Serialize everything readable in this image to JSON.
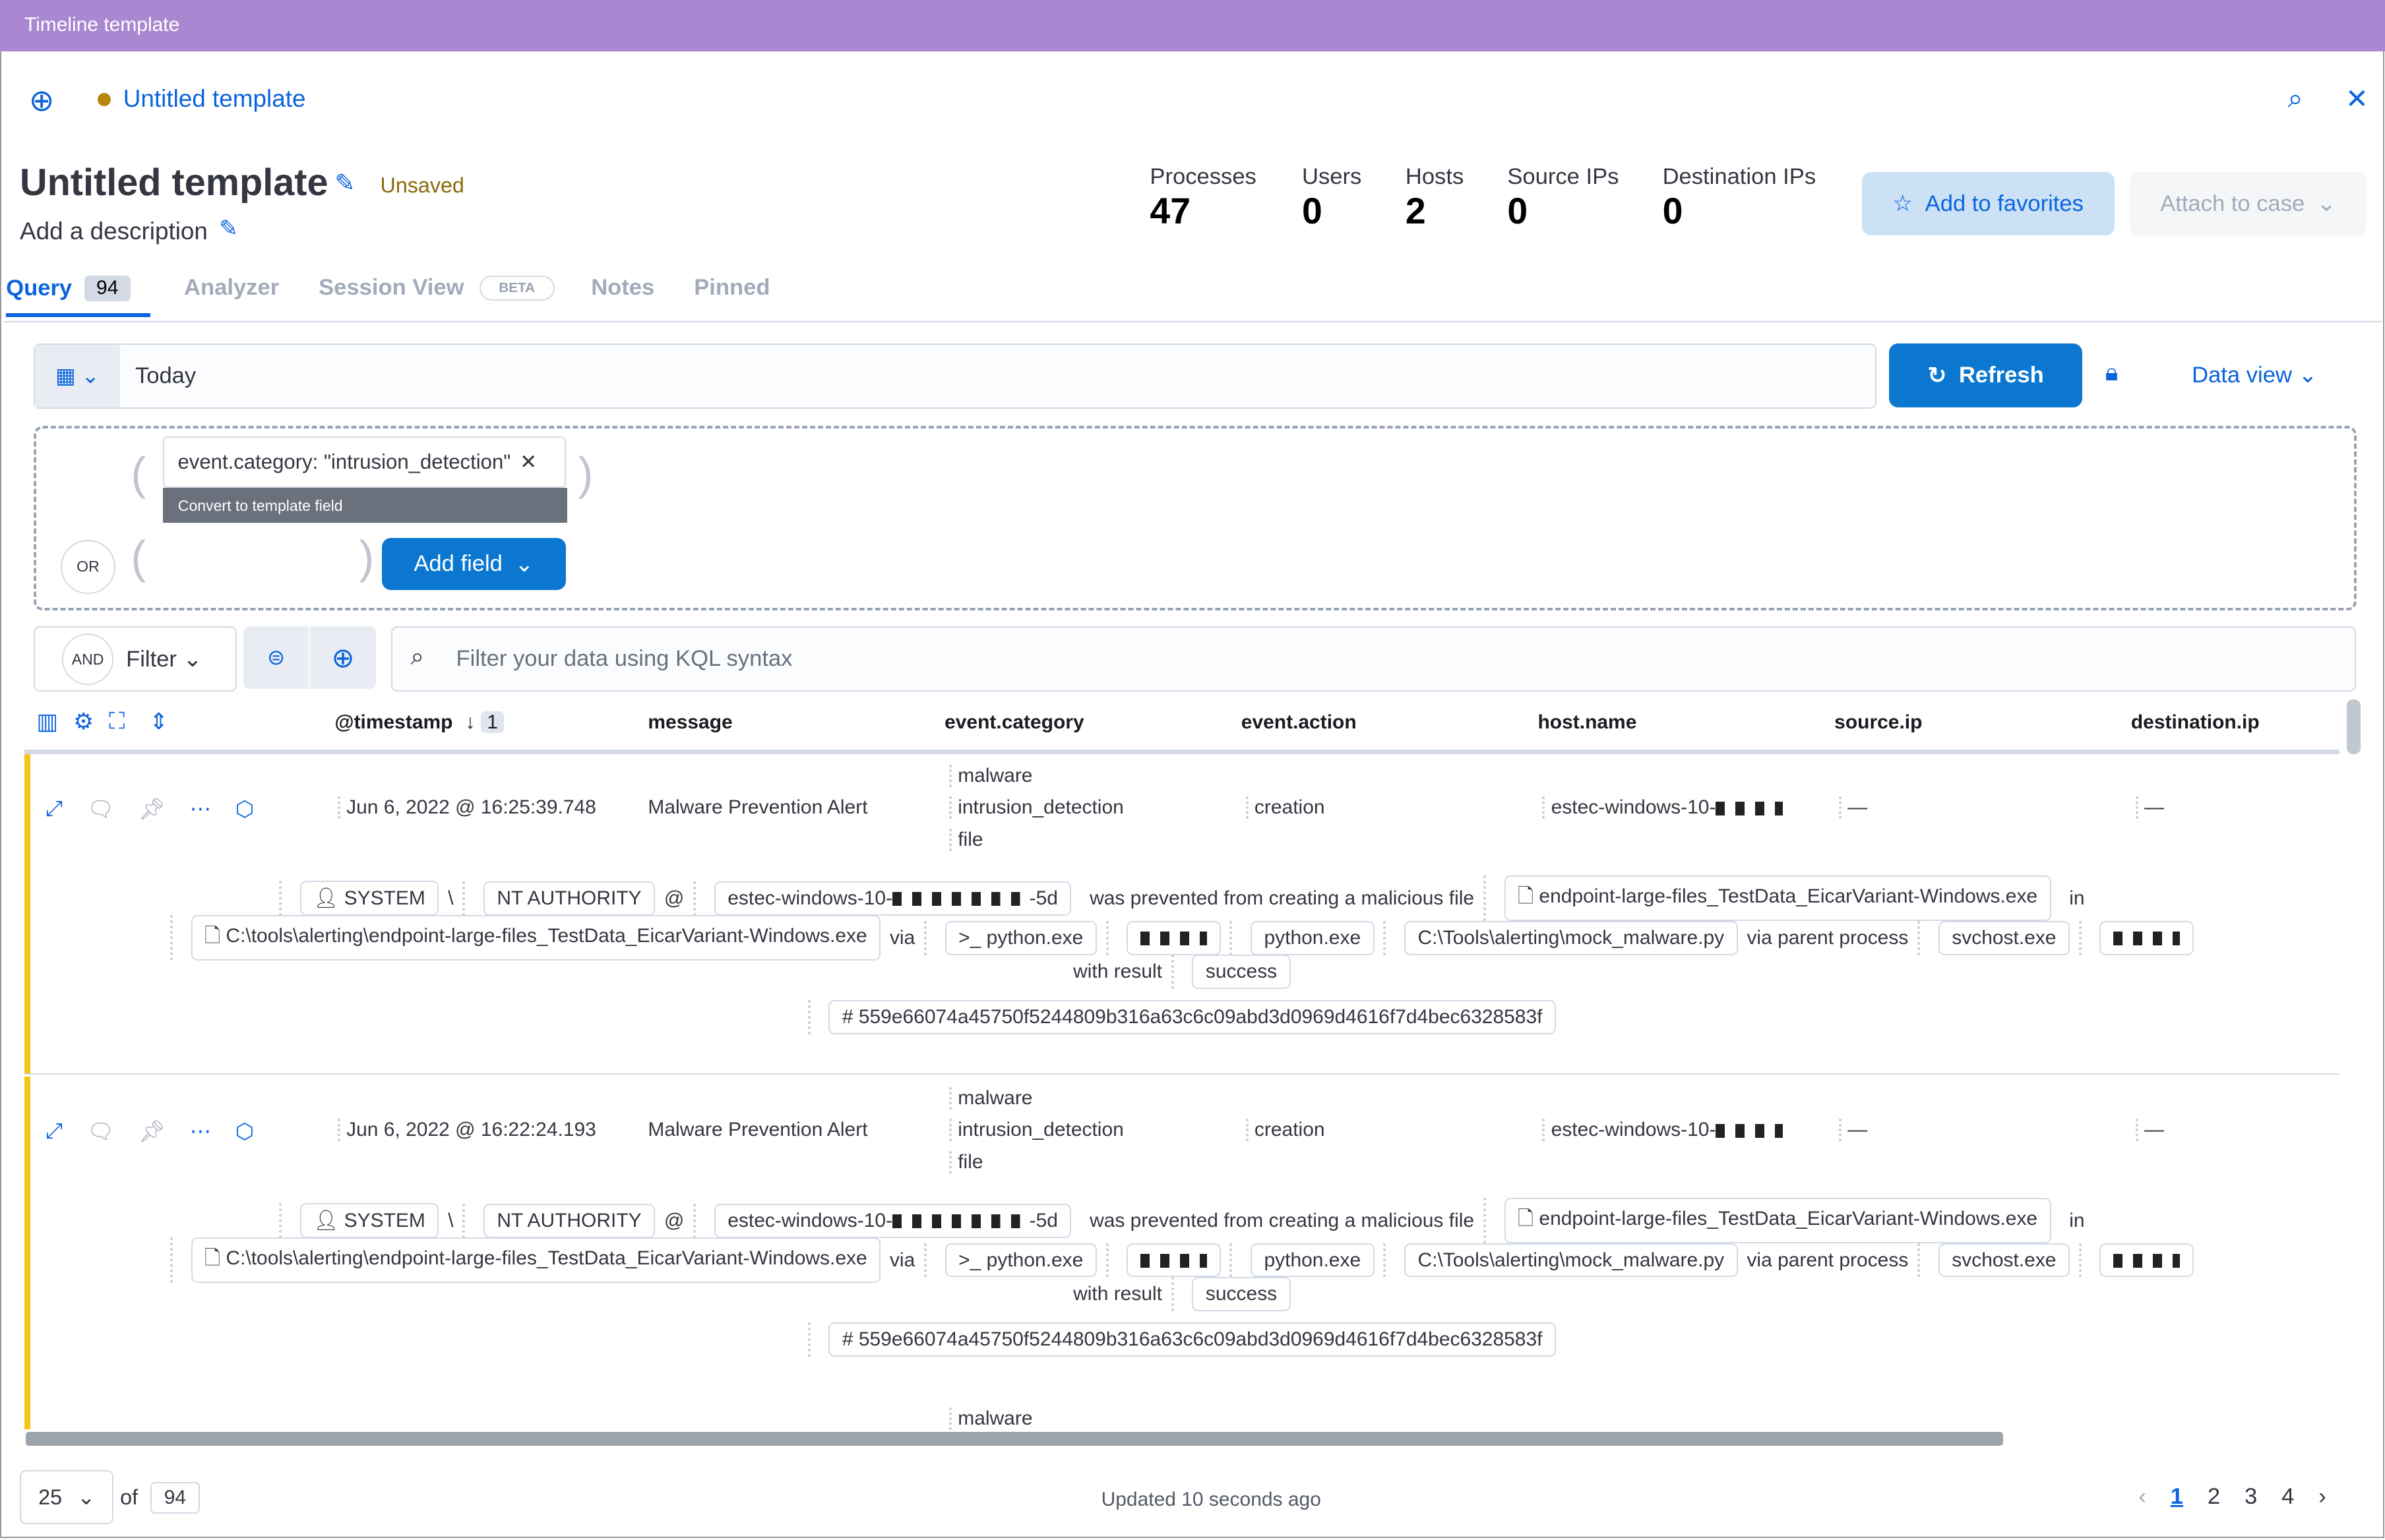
{
  "window": {
    "title": "Timeline template"
  },
  "header": {
    "tab_title": "Untitled template",
    "title": "Untitled template",
    "status": "Unsaved",
    "description": "Add a description"
  },
  "stats": [
    {
      "label": "Processes",
      "value": "47"
    },
    {
      "label": "Users",
      "value": "0"
    },
    {
      "label": "Hosts",
      "value": "2"
    },
    {
      "label": "Source IPs",
      "value": "0"
    },
    {
      "label": "Destination IPs",
      "value": "0"
    }
  ],
  "actions": {
    "favorites": "Add to favorites",
    "attach": "Attach to case"
  },
  "tabs": [
    {
      "label": "Query",
      "count": "94"
    },
    {
      "label": "Analyzer"
    },
    {
      "label": "Session View",
      "badge": "BETA"
    },
    {
      "label": "Notes"
    },
    {
      "label": "Pinned"
    }
  ],
  "query": {
    "date": "Today",
    "refresh": "Refresh",
    "data_view": "Data view"
  },
  "provider": {
    "pill": "event.category: \"intrusion_detection\"",
    "tooltip": "Convert to template field",
    "or": "OR",
    "add_field": "Add field"
  },
  "filter": {
    "and": "AND",
    "label": "Filter",
    "placeholder": "Filter your data using KQL syntax"
  },
  "columns": [
    "@timestamp",
    "message",
    "event.category",
    "event.action",
    "host.name",
    "source.ip",
    "destination.ip"
  ],
  "sort_count": "1",
  "rows": [
    {
      "timestamp": "Jun 6, 2022 @ 16:25:39.748",
      "message": "Malware Prevention Alert",
      "categories": [
        "malware",
        "intrusion_detection",
        "file"
      ],
      "action": "creation",
      "host": "estec-windows-10-",
      "source": "—",
      "dest": "—",
      "user": "SYSTEM",
      "domain": "NT AUTHORITY",
      "hostpill_a": "estec-windows-10-",
      "hostpill_b": "-5d",
      "text_prevented": "was prevented from creating a malicious file",
      "file": "endpoint-large-files_TestData_EicarVariant-Windows.exe",
      "in": "in",
      "path": "C:\\tools\\alerting\\endpoint-large-files_TestData_EicarVariant-Windows.exe",
      "via": "via",
      "process": "python.exe",
      "process2": "python.exe",
      "script": "C:\\Tools\\alerting\\mock_malware.py",
      "via_parent": "via parent process",
      "parent": "svchost.exe",
      "with_result": "with result",
      "result": "success",
      "hash": "559e66074a45750f5244809b316a63c6c09abd3d0969d4616f7d4bec6328583f"
    },
    {
      "timestamp": "Jun 6, 2022 @ 16:22:24.193",
      "message": "Malware Prevention Alert",
      "categories": [
        "malware",
        "intrusion_detection",
        "file"
      ],
      "action": "creation",
      "host": "estec-windows-10-",
      "source": "—",
      "dest": "—",
      "user": "SYSTEM",
      "domain": "NT AUTHORITY",
      "hostpill_a": "estec-windows-10-",
      "hostpill_b": "-5d",
      "text_prevented": "was prevented from creating a malicious file",
      "file": "endpoint-large-files_TestData_EicarVariant-Windows.exe",
      "in": "in",
      "path": "C:\\tools\\alerting\\endpoint-large-files_TestData_EicarVariant-Windows.exe",
      "via": "via",
      "process": "python.exe",
      "process2": "python.exe",
      "script": "C:\\Tools\\alerting\\mock_malware.py",
      "via_parent": "via parent process",
      "parent": "svchost.exe",
      "with_result": "with result",
      "result": "success",
      "hash": "559e66074a45750f5244809b316a63c6c09abd3d0969d4616f7d4bec6328583f"
    }
  ],
  "partial_row": {
    "category": "malware"
  },
  "footer": {
    "page_size": "25",
    "of": "of",
    "total": "94",
    "updated": "Updated 10 seconds ago",
    "pages": [
      "1",
      "2",
      "3",
      "4"
    ],
    "current_page": "1"
  },
  "colors": {
    "accent": "#0b64dd",
    "titlebar": "#a987d1",
    "row_marker": "#f5c518",
    "primary_button": "#0b77d0"
  }
}
